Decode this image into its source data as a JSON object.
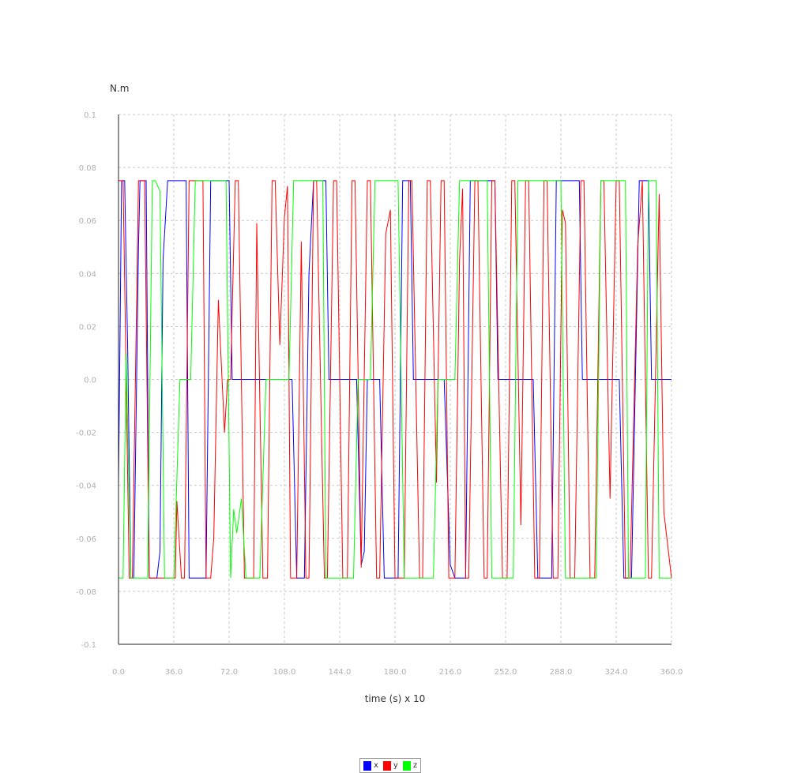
{
  "chart_data": {
    "type": "line",
    "ylabel": "N.m",
    "xlabel": "time (s) x 10",
    "xlim": [
      0,
      360
    ],
    "ylim": [
      -0.1,
      0.1
    ],
    "x_ticks": [
      "0.0",
      "36.0",
      "72.0",
      "108.0",
      "144.0",
      "180.0",
      "216.0",
      "252.0",
      "288.0",
      "324.0",
      "360.0"
    ],
    "y_ticks": [
      "-0.1",
      "-0.08",
      "-0.06",
      "-0.04",
      "-0.02",
      "0.0",
      "0.02",
      "0.04",
      "0.06",
      "0.08",
      "0.1"
    ],
    "grid": true,
    "legend_position": "bottom",
    "series": [
      {
        "name": "x",
        "color": "#0000ff",
        "points": [
          [
            0,
            -0.04
          ],
          [
            2,
            0.075
          ],
          [
            4,
            0.075
          ],
          [
            6,
            0.01
          ],
          [
            8,
            -0.075
          ],
          [
            10,
            -0.075
          ],
          [
            13,
            0.05
          ],
          [
            14,
            0.075
          ],
          [
            18,
            0.075
          ],
          [
            20,
            -0.075
          ],
          [
            25,
            -0.075
          ],
          [
            27,
            -0.065
          ],
          [
            29,
            0.045
          ],
          [
            32,
            0.075
          ],
          [
            44,
            0.075
          ],
          [
            46,
            -0.075
          ],
          [
            57,
            -0.075
          ],
          [
            60,
            0.075
          ],
          [
            72,
            0.075
          ],
          [
            74,
            0
          ],
          [
            108,
            0
          ],
          [
            113,
            0
          ],
          [
            116,
            -0.075
          ],
          [
            121,
            -0.075
          ],
          [
            124,
            0.04
          ],
          [
            127,
            0.075
          ],
          [
            135,
            0.075
          ],
          [
            137,
            0
          ],
          [
            155,
            0
          ],
          [
            158,
            -0.07
          ],
          [
            160,
            -0.065
          ],
          [
            162,
            0
          ],
          [
            170,
            0
          ],
          [
            173,
            -0.075
          ],
          [
            182,
            -0.075
          ],
          [
            185,
            0.075
          ],
          [
            190,
            0.075
          ],
          [
            192,
            0
          ],
          [
            212,
            0
          ],
          [
            216,
            -0.07
          ],
          [
            219,
            -0.075
          ],
          [
            226,
            -0.075
          ],
          [
            229,
            0.075
          ],
          [
            245,
            0.075
          ],
          [
            247,
            0
          ],
          [
            270,
            0
          ],
          [
            273,
            -0.075
          ],
          [
            282,
            -0.075
          ],
          [
            285,
            0.075
          ],
          [
            300,
            0.075
          ],
          [
            302,
            0
          ],
          [
            326,
            0
          ],
          [
            329,
            -0.075
          ],
          [
            334,
            -0.075
          ],
          [
            339,
            0.075
          ],
          [
            345,
            0.075
          ],
          [
            347,
            0
          ],
          [
            360,
            0
          ]
        ]
      },
      {
        "name": "y",
        "color": "#ff0000",
        "points": [
          [
            0,
            0.075
          ],
          [
            3,
            0.075
          ],
          [
            7,
            -0.075
          ],
          [
            9,
            -0.075
          ],
          [
            13,
            0.075
          ],
          [
            17,
            0.075
          ],
          [
            20,
            -0.075
          ],
          [
            27,
            -0.075
          ],
          [
            30,
            -0.075
          ],
          [
            37,
            -0.075
          ],
          [
            38,
            -0.046
          ],
          [
            41,
            -0.075
          ],
          [
            43,
            -0.075
          ],
          [
            46,
            0.075
          ],
          [
            55,
            0.075
          ],
          [
            57,
            -0.075
          ],
          [
            60,
            -0.075
          ],
          [
            62,
            -0.06
          ],
          [
            65,
            0.03
          ],
          [
            69,
            -0.02
          ],
          [
            71,
            0
          ],
          [
            73,
            0
          ],
          [
            76,
            0.075
          ],
          [
            78,
            0.075
          ],
          [
            82,
            -0.075
          ],
          [
            88,
            -0.075
          ],
          [
            90,
            0.059
          ],
          [
            94,
            -0.075
          ],
          [
            97,
            -0.075
          ],
          [
            100,
            0.075
          ],
          [
            102,
            0.075
          ],
          [
            105,
            0.013
          ],
          [
            108,
            0.061
          ],
          [
            110,
            0.073
          ],
          [
            112,
            -0.075
          ],
          [
            116,
            -0.075
          ],
          [
            119,
            0.052
          ],
          [
            122,
            -0.075
          ],
          [
            124,
            -0.075
          ],
          [
            127,
            0.075
          ],
          [
            129,
            0.075
          ],
          [
            134,
            -0.075
          ],
          [
            136,
            -0.075
          ],
          [
            140,
            0.075
          ],
          [
            142,
            0.075
          ],
          [
            146,
            -0.075
          ],
          [
            149,
            -0.075
          ],
          [
            152,
            0.075
          ],
          [
            154,
            0.075
          ],
          [
            158,
            -0.071
          ],
          [
            162,
            0.075
          ],
          [
            164,
            0.075
          ],
          [
            168,
            -0.075
          ],
          [
            170,
            -0.075
          ],
          [
            174,
            0.055
          ],
          [
            177,
            0.064
          ],
          [
            180,
            -0.075
          ],
          [
            186,
            -0.075
          ],
          [
            189,
            0.075
          ],
          [
            191,
            0.075
          ],
          [
            196,
            -0.075
          ],
          [
            198,
            -0.075
          ],
          [
            201,
            0.075
          ],
          [
            203,
            0.075
          ],
          [
            207,
            -0.039
          ],
          [
            210,
            0.075
          ],
          [
            212,
            0.075
          ],
          [
            215,
            -0.075
          ],
          [
            219,
            -0.075
          ],
          [
            222,
            0.045
          ],
          [
            224,
            0.072
          ],
          [
            226,
            -0.075
          ],
          [
            228,
            -0.075
          ],
          [
            232,
            0.075
          ],
          [
            234,
            0.075
          ],
          [
            238,
            -0.075
          ],
          [
            240,
            -0.075
          ],
          [
            243,
            0.075
          ],
          [
            245,
            0.075
          ],
          [
            250,
            -0.075
          ],
          [
            253,
            -0.075
          ],
          [
            256,
            0.075
          ],
          [
            258,
            0.075
          ],
          [
            262,
            -0.055
          ],
          [
            265,
            0.075
          ],
          [
            267,
            0.075
          ],
          [
            271,
            -0.075
          ],
          [
            274,
            -0.075
          ],
          [
            277,
            0.075
          ],
          [
            279,
            0.075
          ],
          [
            283,
            -0.075
          ],
          [
            286,
            -0.075
          ],
          [
            289,
            0.064
          ],
          [
            291,
            0.059
          ],
          [
            294,
            -0.075
          ],
          [
            297,
            -0.075
          ],
          [
            301,
            0.075
          ],
          [
            303,
            0.075
          ],
          [
            307,
            -0.075
          ],
          [
            310,
            -0.075
          ],
          [
            314,
            0.075
          ],
          [
            316,
            0.075
          ],
          [
            320,
            -0.045
          ],
          [
            324,
            0.075
          ],
          [
            326,
            0.075
          ],
          [
            330,
            -0.075
          ],
          [
            333,
            -0.075
          ],
          [
            338,
            0.05
          ],
          [
            341,
            0.075
          ],
          [
            345,
            -0.075
          ],
          [
            347,
            -0.075
          ],
          [
            352,
            0.07
          ],
          [
            355,
            -0.05
          ],
          [
            360,
            -0.075
          ]
        ]
      },
      {
        "name": "z",
        "color": "#00ff00",
        "points": [
          [
            0,
            -0.075
          ],
          [
            3,
            -0.075
          ],
          [
            5,
            0.01
          ],
          [
            8,
            -0.075
          ],
          [
            15,
            -0.075
          ],
          [
            19,
            -0.075
          ],
          [
            22,
            0.075
          ],
          [
            24,
            0.075
          ],
          [
            27,
            0.071
          ],
          [
            30,
            -0.075
          ],
          [
            36,
            -0.075
          ],
          [
            40,
            0
          ],
          [
            47,
            0
          ],
          [
            50,
            0.075
          ],
          [
            70,
            0.075
          ],
          [
            73,
            -0.075
          ],
          [
            75,
            -0.049
          ],
          [
            77,
            -0.058
          ],
          [
            80,
            -0.045
          ],
          [
            83,
            -0.075
          ],
          [
            92,
            -0.075
          ],
          [
            96,
            0
          ],
          [
            111,
            0
          ],
          [
            114,
            0.075
          ],
          [
            133,
            0.075
          ],
          [
            135,
            -0.075
          ],
          [
            153,
            -0.075
          ],
          [
            156,
            0
          ],
          [
            164,
            0
          ],
          [
            167,
            0.075
          ],
          [
            182,
            0.075
          ],
          [
            186,
            -0.075
          ],
          [
            205,
            -0.075
          ],
          [
            208,
            0
          ],
          [
            219,
            0
          ],
          [
            222,
            0.075
          ],
          [
            240,
            0.075
          ],
          [
            243,
            -0.075
          ],
          [
            257,
            -0.075
          ],
          [
            260,
            0.075
          ],
          [
            288,
            0.075
          ],
          [
            291,
            -0.075
          ],
          [
            311,
            -0.075
          ],
          [
            314,
            0.075
          ],
          [
            330,
            0.075
          ],
          [
            332,
            -0.075
          ],
          [
            343,
            -0.075
          ],
          [
            345,
            0.075
          ],
          [
            350,
            0.075
          ],
          [
            352,
            -0.075
          ],
          [
            360,
            -0.075
          ]
        ]
      }
    ]
  }
}
